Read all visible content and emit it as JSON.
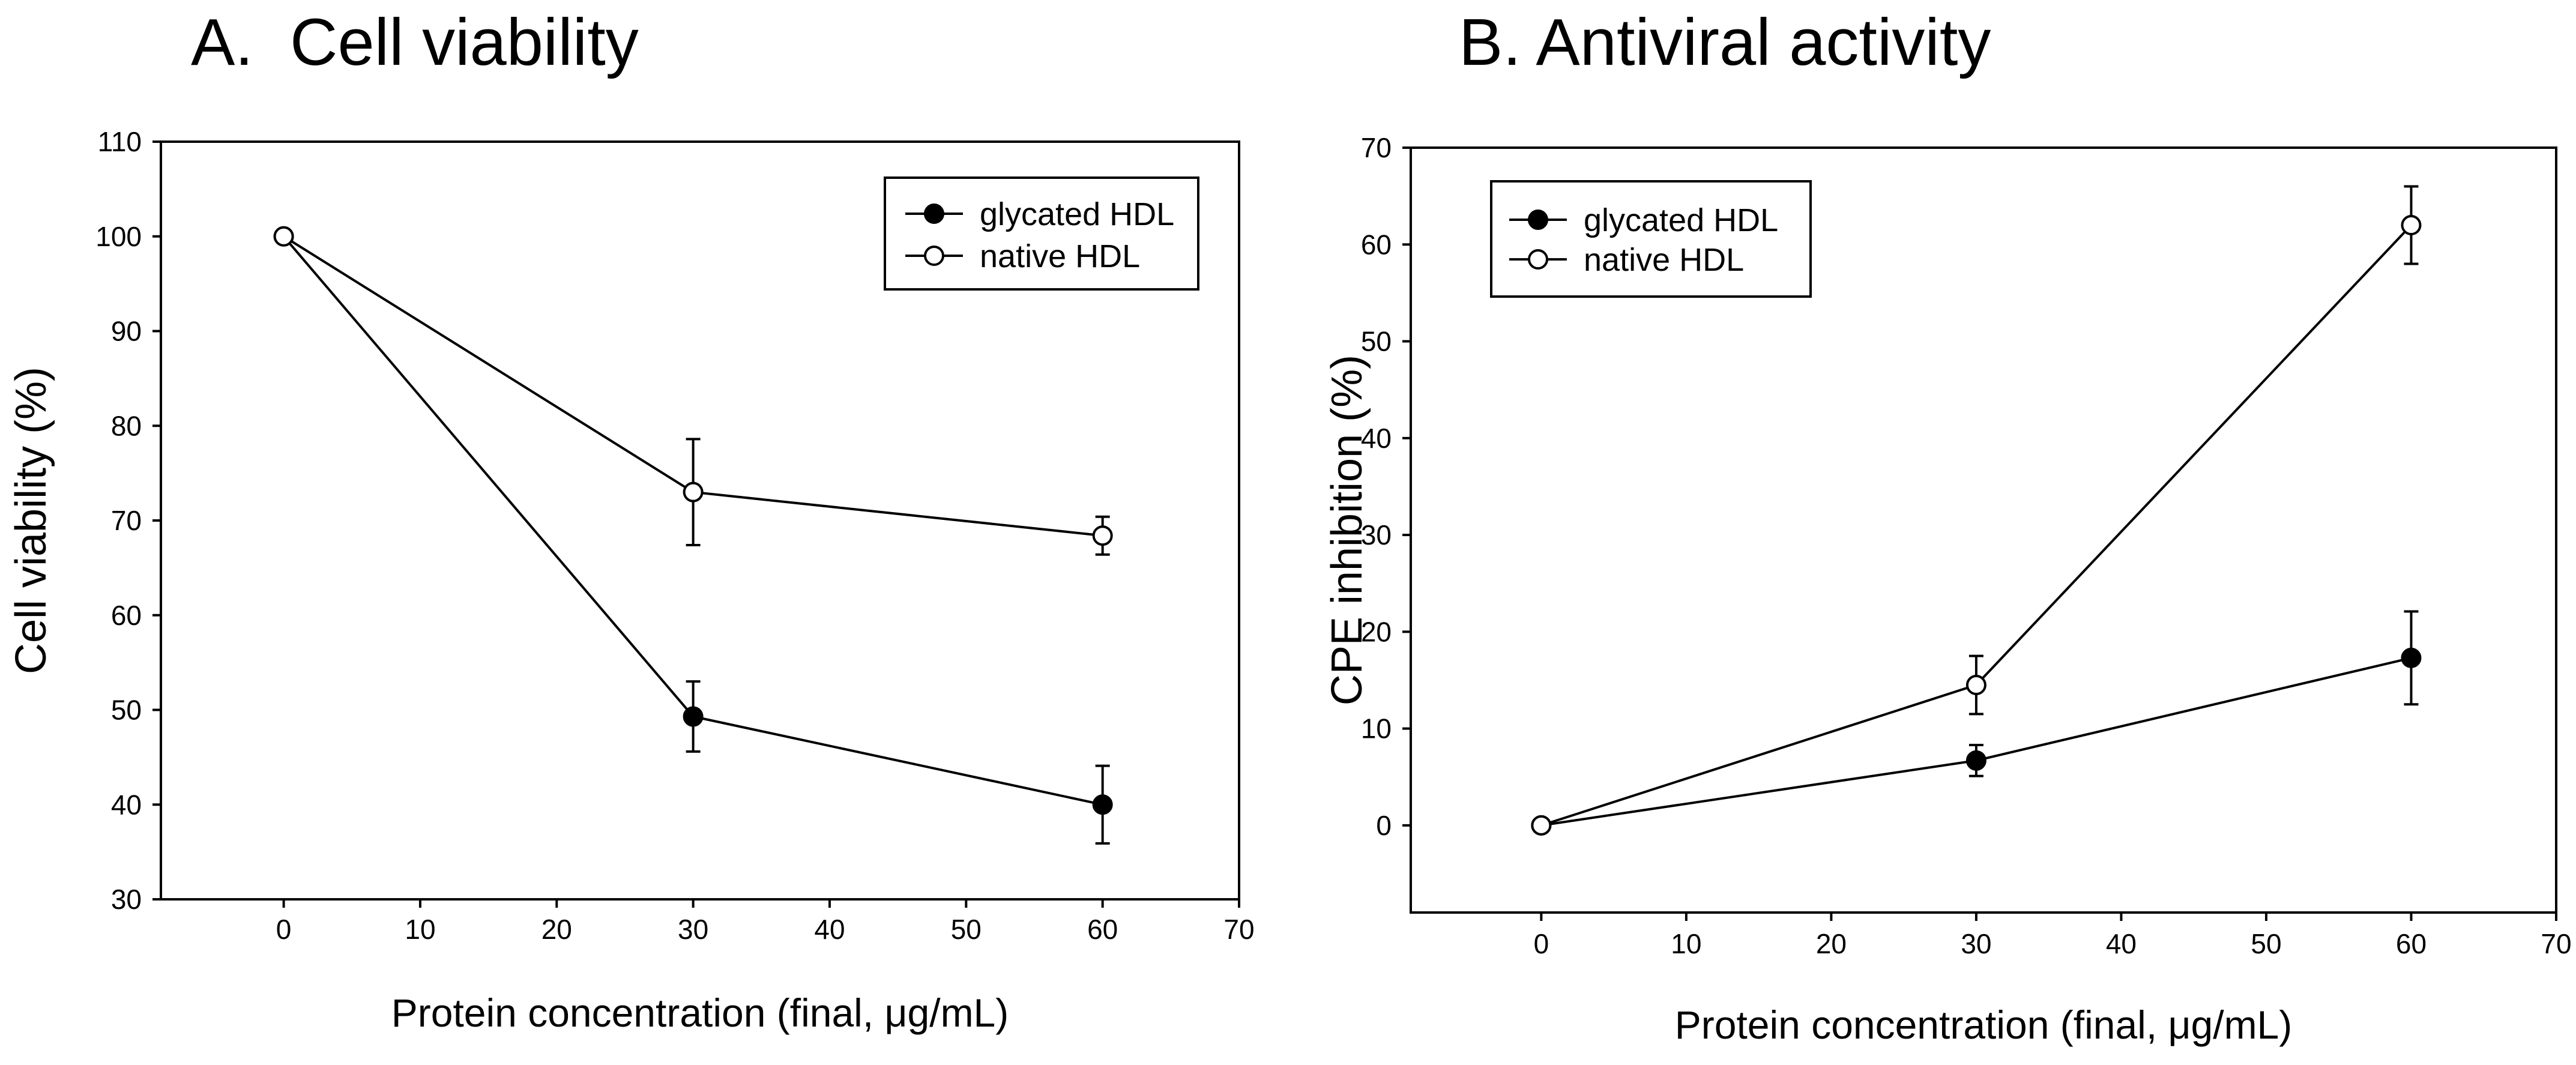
{
  "colors": {
    "line": "#000000",
    "filled_marker": "#000000",
    "open_marker": "#ffffff",
    "background": "#ffffff"
  },
  "panels": {
    "a": {
      "panel_title": "A.  Cell viability",
      "xlabel": "Protein concentration (final, μg/mL)",
      "ylabel": "Cell viability (%)",
      "xticks": [
        "0",
        "10",
        "20",
        "30",
        "40",
        "50",
        "60",
        "70"
      ],
      "yticks": [
        "30",
        "40",
        "50",
        "60",
        "70",
        "80",
        "90",
        "100",
        "110"
      ],
      "legend": [
        "glycated HDL",
        "native HDL"
      ]
    },
    "b": {
      "panel_title": "B. Antiviral activity",
      "xlabel": "Protein concentration (final, μg/mL)",
      "ylabel": "CPE inhibition (%)",
      "xticks": [
        "0",
        "10",
        "20",
        "30",
        "40",
        "50",
        "60",
        "70"
      ],
      "yticks": [
        "0",
        "10",
        "20",
        "30",
        "40",
        "50",
        "60",
        "70"
      ],
      "legend": [
        "glycated HDL",
        "native HDL"
      ]
    }
  },
  "chart_data": [
    {
      "type": "line",
      "title": "A.  Cell viability",
      "xlabel": "Protein concentration (final, μg/mL)",
      "ylabel": "Cell viability (%)",
      "xlim": [
        -9,
        70
      ],
      "ylim": [
        30,
        110
      ],
      "xticks": [
        0,
        10,
        20,
        30,
        40,
        50,
        60,
        70
      ],
      "yticks": [
        30,
        40,
        50,
        60,
        70,
        80,
        90,
        100,
        110
      ],
      "legend_position": "top-right",
      "series": [
        {
          "name": "glycated HDL",
          "marker": "filled-circle",
          "x": [
            0,
            30,
            60
          ],
          "y": [
            100,
            49.3,
            40
          ],
          "err": [
            0,
            3.7,
            4.1
          ]
        },
        {
          "name": "native HDL",
          "marker": "open-circle",
          "x": [
            0,
            30,
            60
          ],
          "y": [
            100,
            73,
            68.4
          ],
          "err": [
            0,
            5.6,
            2
          ]
        }
      ]
    },
    {
      "type": "line",
      "title": "B. Antiviral activity",
      "xlabel": "Protein concentration (final, μg/mL)",
      "ylabel": "CPE inhibition (%)",
      "xlim": [
        -9,
        70
      ],
      "ylim": [
        -9,
        70
      ],
      "xticks": [
        0,
        10,
        20,
        30,
        40,
        50,
        60,
        70
      ],
      "yticks": [
        0,
        10,
        20,
        30,
        40,
        50,
        60,
        70
      ],
      "legend_position": "top-left",
      "series": [
        {
          "name": "glycated HDL",
          "marker": "filled-circle",
          "x": [
            0,
            30,
            60
          ],
          "y": [
            0,
            6.7,
            17.3
          ],
          "err": [
            0,
            1.6,
            4.8
          ]
        },
        {
          "name": "native HDL",
          "marker": "open-circle",
          "x": [
            0,
            30,
            60
          ],
          "y": [
            0,
            14.5,
            62
          ],
          "err": [
            0,
            3,
            4
          ]
        }
      ]
    }
  ]
}
